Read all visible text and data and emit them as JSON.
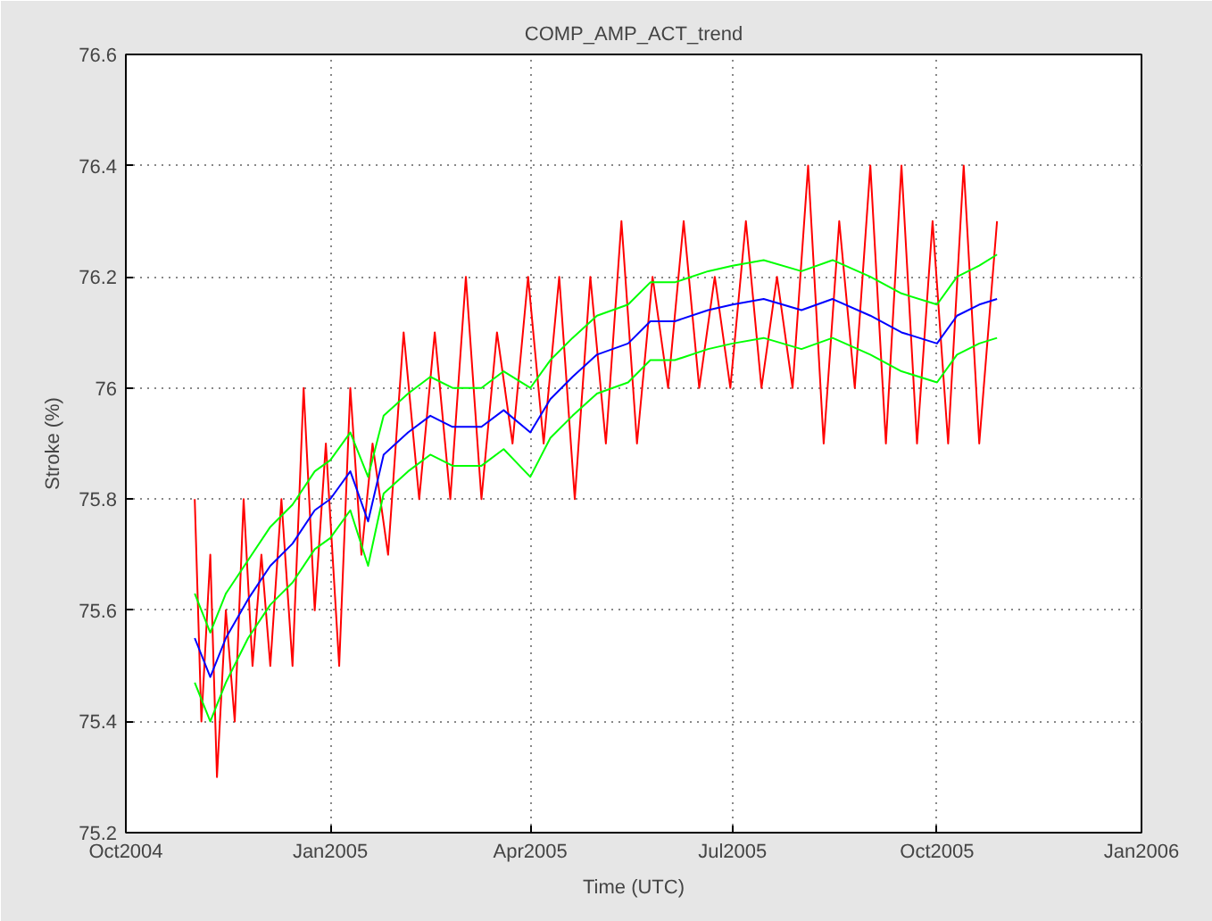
{
  "chart_data": {
    "type": "line",
    "title": "COMP_AMP_ACT_trend",
    "xlabel": "Time (UTC)",
    "ylabel": "Stroke (%)",
    "xlim": [
      "2004-10-01",
      "2006-01-01"
    ],
    "xticks": [
      {
        "value": "2004-10-01",
        "label": "Oct2004"
      },
      {
        "value": "2005-01-01",
        "label": "Jan2005"
      },
      {
        "value": "2005-04-01",
        "label": "Apr2005"
      },
      {
        "value": "2005-07-01",
        "label": "Jul2005"
      },
      {
        "value": "2005-10-01",
        "label": "Oct2005"
      },
      {
        "value": "2006-01-01",
        "label": "Jan2006"
      }
    ],
    "ylim": [
      75.2,
      76.6
    ],
    "yticks": [
      75.2,
      75.4,
      75.6,
      75.8,
      76,
      76.2,
      76.4,
      76.6
    ],
    "grid": true,
    "line_style": "solid",
    "marker": "none",
    "series": [
      {
        "color": "#ff0000",
        "x": [
          "2004-11-01",
          "2004-11-04",
          "2004-11-08",
          "2004-11-11",
          "2004-11-15",
          "2004-11-19",
          "2004-11-23",
          "2004-11-27",
          "2004-12-01",
          "2004-12-05",
          "2004-12-10",
          "2004-12-15",
          "2004-12-20",
          "2004-12-25",
          "2004-12-30",
          "2005-01-05",
          "2005-01-10",
          "2005-01-15",
          "2005-01-20",
          "2005-01-27",
          "2005-02-03",
          "2005-02-10",
          "2005-02-17",
          "2005-02-24",
          "2005-03-03",
          "2005-03-10",
          "2005-03-17",
          "2005-03-24",
          "2005-03-31",
          "2005-04-07",
          "2005-04-14",
          "2005-04-21",
          "2005-04-28",
          "2005-05-05",
          "2005-05-12",
          "2005-05-19",
          "2005-05-26",
          "2005-06-02",
          "2005-06-09",
          "2005-06-16",
          "2005-06-23",
          "2005-06-30",
          "2005-07-07",
          "2005-07-14",
          "2005-07-21",
          "2005-07-28",
          "2005-08-04",
          "2005-08-11",
          "2005-08-18",
          "2005-08-25",
          "2005-09-01",
          "2005-09-08",
          "2005-09-15",
          "2005-09-22",
          "2005-09-29",
          "2005-10-06",
          "2005-10-13",
          "2005-10-20",
          "2005-10-28"
        ],
        "values": [
          75.8,
          75.4,
          75.7,
          75.3,
          75.6,
          75.4,
          75.8,
          75.5,
          75.7,
          75.5,
          75.8,
          75.5,
          76.0,
          75.6,
          75.9,
          75.5,
          76.0,
          75.7,
          75.9,
          75.7,
          76.1,
          75.8,
          76.1,
          75.8,
          76.2,
          75.8,
          76.1,
          75.9,
          76.2,
          75.9,
          76.2,
          75.8,
          76.2,
          75.9,
          76.3,
          75.9,
          76.2,
          76.0,
          76.3,
          76.0,
          76.2,
          76.0,
          76.3,
          76.0,
          76.2,
          76.0,
          76.4,
          75.9,
          76.3,
          76.0,
          76.4,
          75.9,
          76.4,
          75.9,
          76.3,
          75.9,
          76.4,
          75.9,
          76.3
        ]
      },
      {
        "color": "#00ff00",
        "x": [
          "2004-11-01",
          "2004-11-08",
          "2004-11-15",
          "2004-11-25",
          "2004-12-05",
          "2004-12-15",
          "2004-12-25",
          "2005-01-01",
          "2005-01-10",
          "2005-01-18",
          "2005-01-25",
          "2005-02-05",
          "2005-02-15",
          "2005-02-25",
          "2005-03-10",
          "2005-03-20",
          "2005-04-01",
          "2005-04-10",
          "2005-04-20",
          "2005-05-01",
          "2005-05-15",
          "2005-05-25",
          "2005-06-05",
          "2005-06-20",
          "2005-07-01",
          "2005-07-15",
          "2005-08-01",
          "2005-08-15",
          "2005-09-01",
          "2005-09-15",
          "2005-10-01",
          "2005-10-10",
          "2005-10-20",
          "2005-10-28"
        ],
        "values": [
          75.63,
          75.56,
          75.63,
          75.69,
          75.75,
          75.79,
          75.85,
          75.87,
          75.92,
          75.84,
          75.95,
          75.99,
          76.02,
          76.0,
          76.0,
          76.03,
          76.0,
          76.05,
          76.09,
          76.13,
          76.15,
          76.19,
          76.19,
          76.21,
          76.22,
          76.23,
          76.21,
          76.23,
          76.2,
          76.17,
          76.15,
          76.2,
          76.22,
          76.24
        ]
      },
      {
        "color": "#00ff00",
        "x": [
          "2004-11-01",
          "2004-11-08",
          "2004-11-15",
          "2004-11-25",
          "2004-12-05",
          "2004-12-15",
          "2004-12-25",
          "2005-01-01",
          "2005-01-10",
          "2005-01-18",
          "2005-01-25",
          "2005-02-05",
          "2005-02-15",
          "2005-02-25",
          "2005-03-10",
          "2005-03-20",
          "2005-04-01",
          "2005-04-10",
          "2005-04-20",
          "2005-05-01",
          "2005-05-15",
          "2005-05-25",
          "2005-06-05",
          "2005-06-20",
          "2005-07-01",
          "2005-07-15",
          "2005-08-01",
          "2005-08-15",
          "2005-09-01",
          "2005-09-15",
          "2005-10-01",
          "2005-10-10",
          "2005-10-20",
          "2005-10-28"
        ],
        "values": [
          75.47,
          75.4,
          75.47,
          75.55,
          75.61,
          75.65,
          75.71,
          75.73,
          75.78,
          75.68,
          75.81,
          75.85,
          75.88,
          75.86,
          75.86,
          75.89,
          75.84,
          75.91,
          75.95,
          75.99,
          76.01,
          76.05,
          76.05,
          76.07,
          76.08,
          76.09,
          76.07,
          76.09,
          76.06,
          76.03,
          76.01,
          76.06,
          76.08,
          76.09
        ]
      },
      {
        "color": "#0000ff",
        "x": [
          "2004-11-01",
          "2004-11-08",
          "2004-11-15",
          "2004-11-25",
          "2004-12-05",
          "2004-12-15",
          "2004-12-25",
          "2005-01-01",
          "2005-01-10",
          "2005-01-18",
          "2005-01-25",
          "2005-02-05",
          "2005-02-15",
          "2005-02-25",
          "2005-03-10",
          "2005-03-20",
          "2005-04-01",
          "2005-04-10",
          "2005-04-20",
          "2005-05-01",
          "2005-05-15",
          "2005-05-25",
          "2005-06-05",
          "2005-06-20",
          "2005-07-01",
          "2005-07-15",
          "2005-08-01",
          "2005-08-15",
          "2005-09-01",
          "2005-09-15",
          "2005-10-01",
          "2005-10-10",
          "2005-10-20",
          "2005-10-28"
        ],
        "values": [
          75.55,
          75.48,
          75.55,
          75.62,
          75.68,
          75.72,
          75.78,
          75.8,
          75.85,
          75.76,
          75.88,
          75.92,
          75.95,
          75.93,
          75.93,
          75.96,
          75.92,
          75.98,
          76.02,
          76.06,
          76.08,
          76.12,
          76.12,
          76.14,
          76.15,
          76.16,
          76.14,
          76.16,
          76.13,
          76.1,
          76.08,
          76.13,
          76.15,
          76.16
        ]
      }
    ]
  }
}
